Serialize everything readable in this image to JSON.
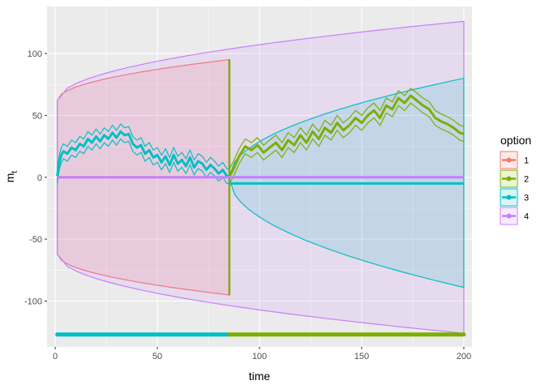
{
  "chart_data": {
    "type": "line",
    "xlabel": "time",
    "ylabel": "m",
    "ylabel_subscript": "t",
    "xlim": [
      -4,
      204
    ],
    "ylim": [
      -137,
      138
    ],
    "x_ticks": [
      0,
      50,
      100,
      150,
      200
    ],
    "x_tick_labels": [
      "0",
      "50",
      "100",
      "150",
      "200"
    ],
    "y_ticks": [
      -100,
      -50,
      0,
      50,
      100
    ],
    "y_tick_labels": [
      "-100",
      "-50",
      "0",
      "50",
      "100"
    ],
    "grid": true,
    "legend": {
      "title": "option",
      "placement": "right",
      "entries": [
        "1",
        "2",
        "3",
        "4"
      ]
    },
    "colors": {
      "1": "#F8766D",
      "2": "#7CAE00",
      "3": "#00BFC4",
      "4": "#C77CFF",
      "panel_bg": "#EBEBEB",
      "grid": "#FFFFFF"
    },
    "bands": [
      {
        "series": "1",
        "x": [
          1,
          85
        ],
        "upper": [
          62,
          95
        ],
        "lower": [
          -62,
          -95
        ],
        "color": "#F8766D",
        "shape": "sqrt"
      },
      {
        "series": "4",
        "x": [
          1,
          200
        ],
        "upper": [
          62,
          126
        ],
        "lower": [
          -62,
          -126
        ],
        "color": "#C77CFF",
        "shape": "sqrt"
      },
      {
        "series": "2",
        "x": [
          85,
          85.5
        ],
        "upper": [
          95,
          95
        ],
        "lower": [
          -95,
          -95
        ],
        "color": "#7CAE00",
        "shape": "sqrt"
      },
      {
        "series": "3",
        "x": [
          85,
          200
        ],
        "upper": [
          0,
          80
        ],
        "lower": [
          0,
          -89
        ],
        "color": "#00BFC4",
        "shape": "sqrt"
      }
    ],
    "series": [
      {
        "name": "3",
        "x": [
          1,
          2,
          3,
          4,
          5,
          6,
          8,
          10,
          12,
          14,
          16,
          18,
          20,
          22,
          24,
          26,
          28,
          30,
          32,
          34,
          36,
          38,
          40,
          42,
          44,
          46,
          48,
          50,
          52,
          54,
          56,
          58,
          60,
          62,
          64,
          66,
          68,
          70,
          72,
          74,
          76,
          78,
          80,
          82,
          84,
          85
        ],
        "values": [
          1,
          12,
          18,
          21,
          20,
          19,
          24,
          22,
          27,
          25,
          31,
          28,
          33,
          29,
          34,
          31,
          36,
          32,
          37,
          34,
          35,
          27,
          24,
          26,
          19,
          22,
          16,
          18,
          12,
          17,
          10,
          18,
          11,
          14,
          9,
          16,
          8,
          13,
          11,
          6,
          10,
          7,
          3,
          6,
          1,
          1
        ],
        "interval": 6,
        "color": "#00BFC4"
      },
      {
        "name": "3-flat",
        "x": [
          85,
          200
        ],
        "values": [
          -5,
          -5
        ],
        "color": "#00BFC4"
      },
      {
        "name": "2",
        "x": [
          85,
          87,
          90,
          93,
          96,
          99,
          102,
          105,
          108,
          111,
          114,
          117,
          120,
          123,
          126,
          129,
          132,
          135,
          138,
          141,
          144,
          147,
          150,
          153,
          156,
          159,
          162,
          165,
          168,
          171,
          174,
          177,
          180,
          183,
          186,
          189,
          192,
          195,
          198,
          200
        ],
        "values": [
          0,
          6,
          17,
          25,
          22,
          26,
          20,
          24,
          28,
          22,
          30,
          26,
          34,
          28,
          37,
          31,
          40,
          36,
          44,
          38,
          42,
          48,
          44,
          50,
          54,
          48,
          58,
          55,
          64,
          60,
          66,
          62,
          58,
          55,
          48,
          45,
          43,
          40,
          36,
          35
        ],
        "interval": 6,
        "color": "#7CAE00"
      },
      {
        "name": "4",
        "x": [
          1,
          200
        ],
        "values": [
          0,
          0
        ],
        "color": "#C77CFF"
      }
    ],
    "rug": [
      {
        "series": "3",
        "x": [
          1,
          85
        ],
        "y": -127,
        "color": "#00BFC4"
      },
      {
        "series": "2",
        "x": [
          85,
          200
        ],
        "y": -127,
        "color": "#7CAE00"
      }
    ]
  }
}
